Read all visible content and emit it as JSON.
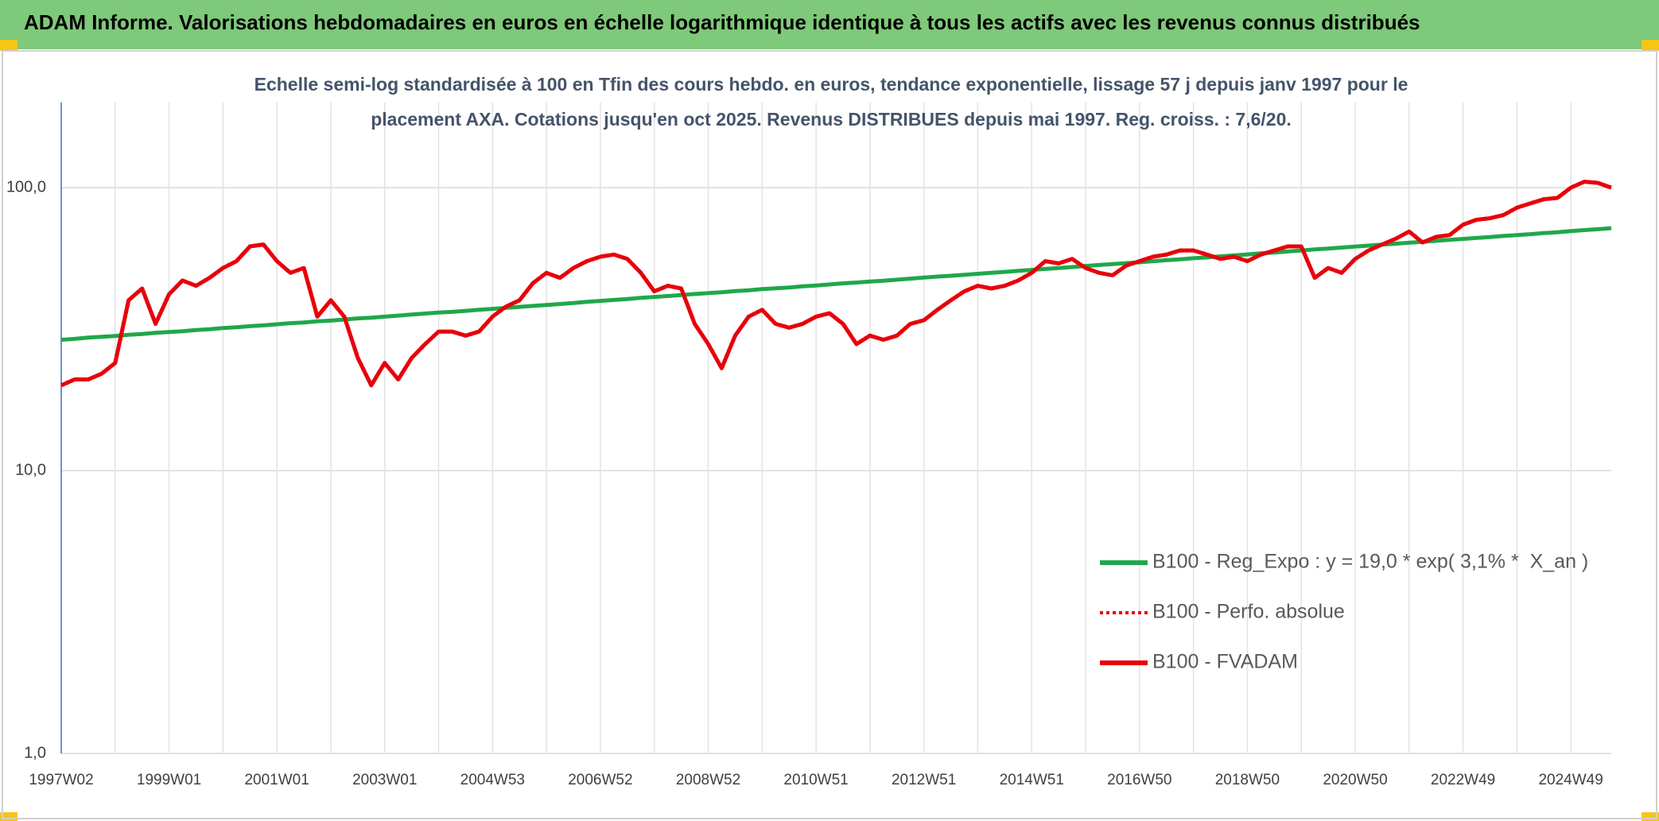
{
  "chart_data": {
    "type": "line",
    "title": "ADAM Informe. Valorisations hebdomadaires en euros en échelle logarithmique identique à tous les actifs avec les revenus connus distribués",
    "subtitle": "Echelle semi-log standardisée à 100 en Tfin des cours hebdo. en euros, tendance exponentielle, lissage 57 j depuis janv 1997 pour le placement AXA. Cotations jusqu'en oct 2025. Revenus DISTRIBUES depuis mai 1997. Reg. croiss. : 7,6/20.",
    "categories": [
      "1997W02",
      null,
      null,
      null,
      null,
      null,
      null,
      null,
      "1999W01",
      null,
      null,
      null,
      null,
      null,
      null,
      null,
      "2001W01",
      null,
      null,
      null,
      null,
      null,
      null,
      null,
      "2003W01",
      null,
      null,
      null,
      null,
      null,
      null,
      null,
      "2004W53",
      null,
      null,
      null,
      null,
      null,
      null,
      null,
      "2006W52",
      null,
      null,
      null,
      null,
      null,
      null,
      null,
      "2008W52",
      null,
      null,
      null,
      null,
      null,
      null,
      null,
      "2010W51",
      null,
      null,
      null,
      null,
      null,
      null,
      null,
      "2012W51",
      null,
      null,
      null,
      null,
      null,
      null,
      null,
      "2014W51",
      null,
      null,
      null,
      null,
      null,
      null,
      null,
      "2016W50",
      null,
      null,
      null,
      null,
      null,
      null,
      null,
      "2018W50",
      null,
      null,
      null,
      null,
      null,
      null,
      null,
      "2020W50",
      null,
      null,
      null,
      null,
      null,
      null,
      null,
      "2022W49",
      null,
      null,
      null,
      null,
      null,
      null,
      null,
      "2024W49",
      null,
      null,
      null
    ],
    "series": [
      {
        "name": "B100 - Reg_Expo : y = 19,0 * exp( 3,1% *  X_an )",
        "color": "#1fa84a",
        "line_style": "solid",
        "values": [
          29.0,
          29.2,
          29.5,
          29.7,
          29.9,
          30.2,
          30.4,
          30.7,
          30.9,
          31.1,
          31.4,
          31.6,
          31.9,
          32.1,
          32.4,
          32.6,
          32.9,
          33.2,
          33.4,
          33.7,
          33.9,
          34.2,
          34.5,
          34.7,
          35.0,
          35.3,
          35.6,
          35.9,
          36.2,
          36.4,
          36.7,
          37.0,
          37.3,
          37.6,
          37.9,
          38.2,
          38.5,
          38.8,
          39.1,
          39.5,
          39.8,
          40.1,
          40.4,
          40.8,
          41.1,
          41.4,
          41.7,
          42.1,
          42.4,
          42.7,
          43.1,
          43.4,
          43.8,
          44.1,
          44.4,
          44.8,
          45.1,
          45.5,
          45.9,
          46.2,
          46.6,
          46.9,
          47.3,
          47.7,
          48.1,
          48.5,
          48.8,
          49.2,
          49.6,
          50.0,
          50.4,
          50.8,
          51.2,
          51.6,
          52.0,
          52.4,
          52.9,
          53.3,
          53.7,
          54.1,
          54.5,
          55.0,
          55.4,
          55.8,
          56.3,
          56.7,
          57.2,
          57.6,
          58.1,
          58.6,
          59.0,
          59.5,
          60.0,
          60.5,
          60.9,
          61.4,
          61.9,
          62.4,
          62.9,
          63.4,
          63.9,
          64.4,
          64.9,
          65.4,
          65.9,
          66.4,
          66.9,
          67.5,
          68.0,
          68.5,
          69.1,
          69.6,
          70.2,
          70.8,
          71.3,
          71.9
        ]
      },
      {
        "name": "B100 - Perfo. absolue",
        "color": "#e8000b",
        "line_style": "dotted",
        "values": [
          20,
          21,
          21,
          22,
          24,
          40,
          44,
          33,
          42,
          47,
          45,
          48,
          52,
          55,
          62,
          63,
          55,
          50,
          52,
          35,
          40,
          35,
          25,
          20,
          24,
          21,
          25,
          28,
          31,
          31,
          30,
          31,
          35,
          38,
          40,
          46,
          50,
          48,
          52,
          55,
          57,
          58,
          56,
          50,
          43,
          45,
          44,
          33,
          28,
          23,
          30,
          35,
          37,
          33,
          32,
          33,
          35,
          36,
          33,
          28,
          30,
          29,
          30,
          33,
          34,
          37,
          40,
          43,
          45,
          44,
          45,
          47,
          50,
          55,
          54,
          56,
          52,
          50,
          49,
          53,
          55,
          57,
          58,
          60,
          60,
          58,
          56,
          57,
          55,
          58,
          60,
          62,
          62,
          48,
          52,
          50,
          56,
          60,
          63,
          66,
          70,
          64,
          67,
          68,
          74,
          77,
          78,
          80,
          85,
          88,
          91,
          92,
          100,
          105,
          104,
          100
        ]
      },
      {
        "name": "B100 - FVADAM",
        "color": "#e8000b",
        "line_style": "solid",
        "values": [
          20,
          21,
          21,
          22,
          24,
          40,
          44,
          33,
          42,
          47,
          45,
          48,
          52,
          55,
          62,
          63,
          55,
          50,
          52,
          35,
          40,
          35,
          25,
          20,
          24,
          21,
          25,
          28,
          31,
          31,
          30,
          31,
          35,
          38,
          40,
          46,
          50,
          48,
          52,
          55,
          57,
          58,
          56,
          50,
          43,
          45,
          44,
          33,
          28,
          23,
          30,
          35,
          37,
          33,
          32,
          33,
          35,
          36,
          33,
          28,
          30,
          29,
          30,
          33,
          34,
          37,
          40,
          43,
          45,
          44,
          45,
          47,
          50,
          55,
          54,
          56,
          52,
          50,
          49,
          53,
          55,
          57,
          58,
          60,
          60,
          58,
          56,
          57,
          55,
          58,
          60,
          62,
          62,
          48,
          52,
          50,
          56,
          60,
          63,
          66,
          70,
          64,
          67,
          68,
          74,
          77,
          78,
          80,
          85,
          88,
          91,
          92,
          100,
          105,
          104,
          100
        ]
      }
    ],
    "log_scale": true,
    "ylim": [
      1,
      200
    ],
    "yticks": [
      {
        "value": 1,
        "label": "1,0"
      },
      {
        "value": 10,
        "label": "10,0"
      },
      {
        "value": 100,
        "label": "100,0"
      }
    ],
    "grid": true,
    "legend": "right"
  }
}
